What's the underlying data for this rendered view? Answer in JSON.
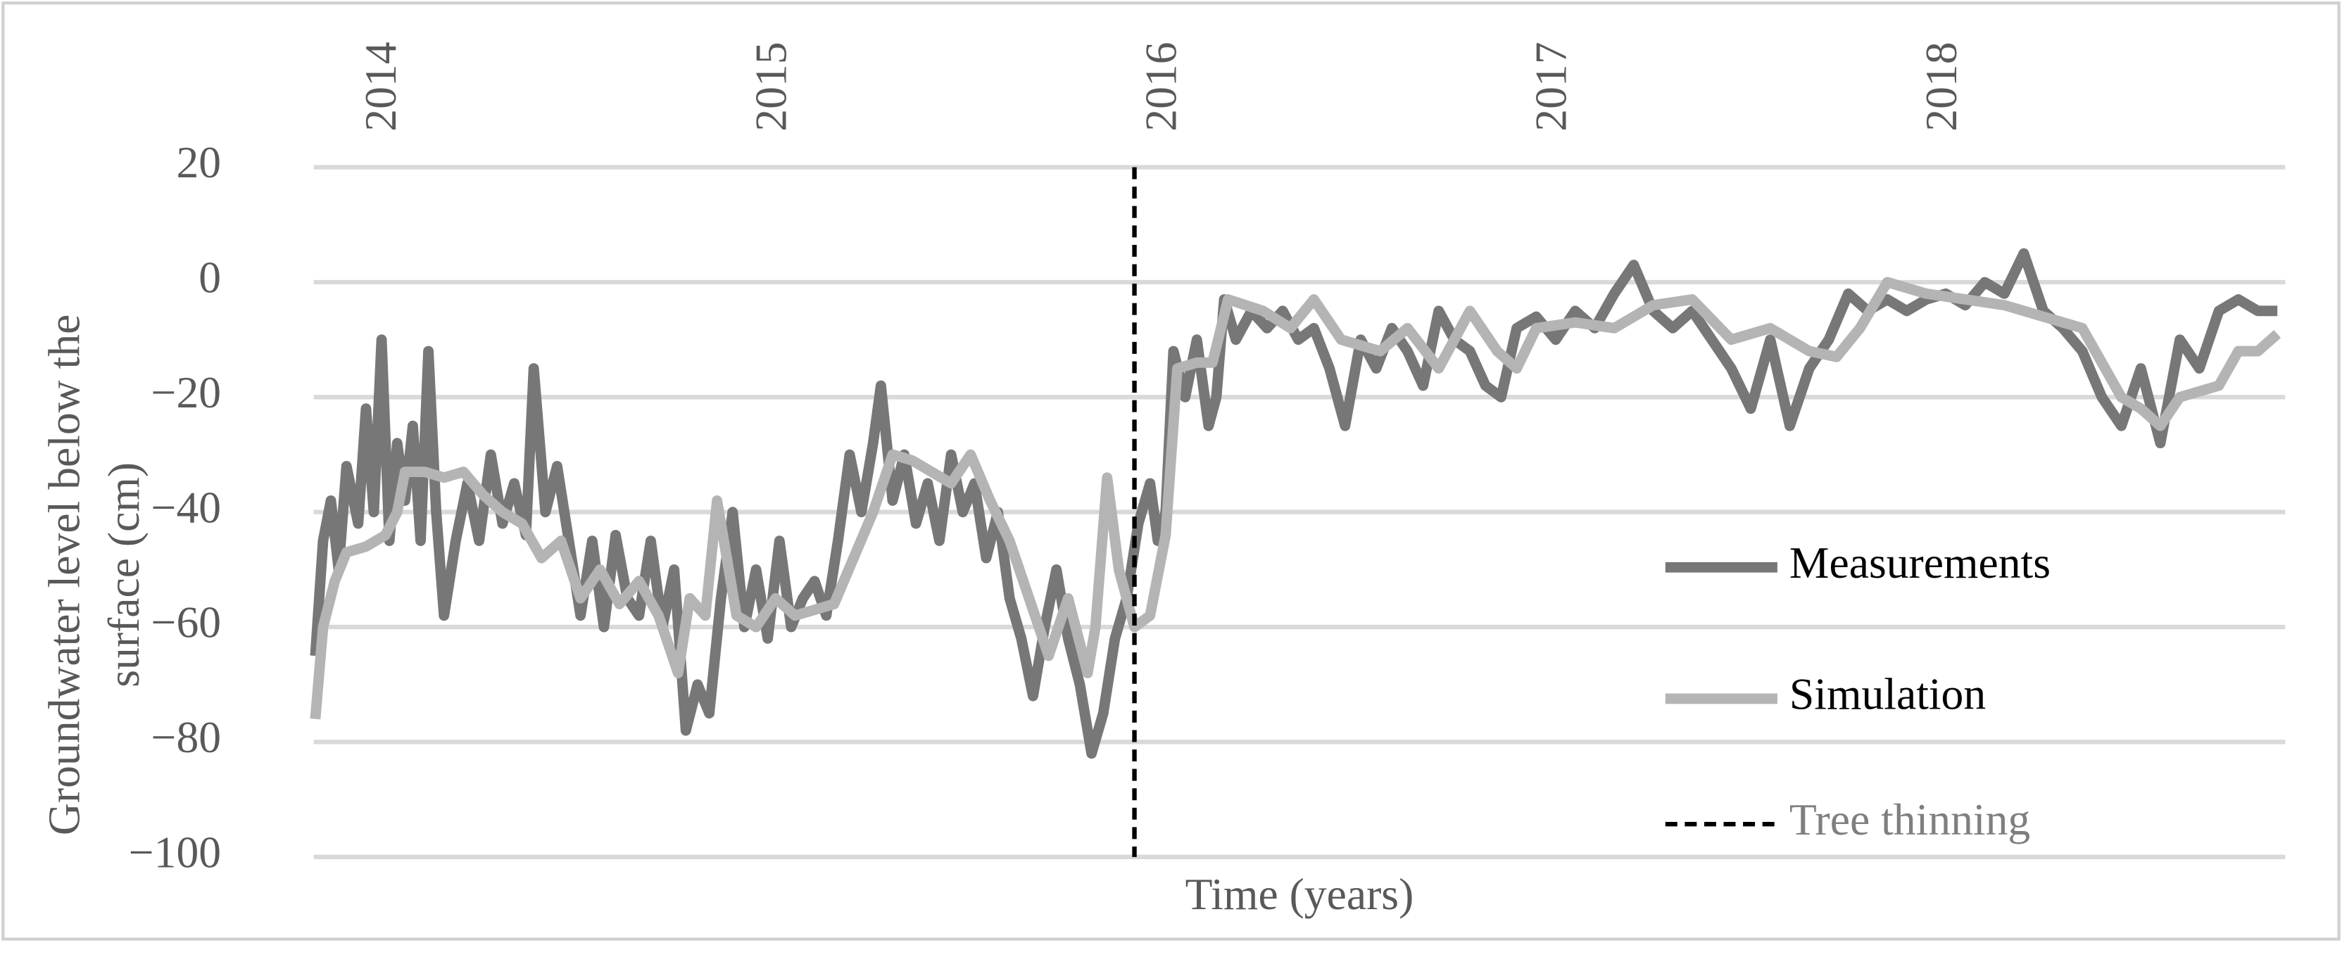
{
  "chart_data": {
    "type": "line",
    "ylabel": [
      "Groundwater level below the",
      "surface (cm)"
    ],
    "xlabel": "Time (years)",
    "xlim": [
      2013.816,
      2018.87
    ],
    "xticks": [
      2014,
      2015,
      2016,
      2017,
      2018
    ],
    "ylim": [
      -100,
      20
    ],
    "yticks": [
      {
        "value": -100,
        "label": "−100"
      },
      {
        "value": -80,
        "label": "−80"
      },
      {
        "value": -60,
        "label": "−60"
      },
      {
        "value": -40,
        "label": "−40"
      },
      {
        "value": -20,
        "label": "−20"
      },
      0,
      20
    ],
    "grid": true,
    "legend": "right",
    "series": [
      {
        "name": "Measurements",
        "color": "#777777",
        "x": [
          2013.82,
          2013.84,
          2013.86,
          2013.88,
          2013.9,
          2013.93,
          2013.95,
          2013.97,
          2013.99,
          2014.01,
          2014.03,
          2014.05,
          2014.07,
          2014.09,
          2014.11,
          2014.13,
          2014.15,
          2014.18,
          2014.21,
          2014.24,
          2014.27,
          2014.3,
          2014.33,
          2014.36,
          2014.38,
          2014.41,
          2014.44,
          2014.47,
          2014.5,
          2014.53,
          2014.56,
          2014.59,
          2014.62,
          2014.65,
          2014.68,
          2014.71,
          2014.74,
          2014.77,
          2014.8,
          2014.83,
          2014.86,
          2014.89,
          2014.92,
          2014.95,
          2014.98,
          2015.01,
          2015.04,
          2015.07,
          2015.1,
          2015.13,
          2015.16,
          2015.19,
          2015.22,
          2015.25,
          2015.27,
          2015.3,
          2015.33,
          2015.36,
          2015.39,
          2015.42,
          2015.45,
          2015.48,
          2015.51,
          2015.54,
          2015.57,
          2015.6,
          2015.63,
          2015.66,
          2015.69,
          2015.72,
          2015.75,
          2015.78,
          2015.81,
          2015.84,
          2015.87,
          2015.9,
          2015.93,
          2015.96,
          2015.98,
          2016.0,
          2016.02,
          2016.05,
          2016.08,
          2016.11,
          2016.13,
          2016.15,
          2016.18,
          2016.22,
          2016.26,
          2016.3,
          2016.34,
          2016.38,
          2016.42,
          2016.46,
          2016.5,
          2016.54,
          2016.58,
          2016.62,
          2016.66,
          2016.7,
          2016.74,
          2016.78,
          2016.82,
          2016.86,
          2016.9,
          2016.95,
          2017.0,
          2017.05,
          2017.1,
          2017.15,
          2017.2,
          2017.25,
          2017.3,
          2017.35,
          2017.4,
          2017.45,
          2017.5,
          2017.55,
          2017.6,
          2017.65,
          2017.7,
          2017.75,
          2017.8,
          2017.85,
          2017.9,
          2017.95,
          2018.0,
          2018.05,
          2018.1,
          2018.15,
          2018.2,
          2018.25,
          2018.3,
          2018.35,
          2018.4,
          2018.45,
          2018.5,
          2018.55,
          2018.6,
          2018.65,
          2018.7,
          2018.75,
          2018.8,
          2018.85
        ],
        "values": [
          -65,
          -45,
          -38,
          -50,
          -32,
          -42,
          -22,
          -40,
          -10,
          -45,
          -28,
          -38,
          -25,
          -45,
          -12,
          -40,
          -58,
          -45,
          -35,
          -45,
          -30,
          -42,
          -35,
          -44,
          -15,
          -40,
          -32,
          -45,
          -58,
          -45,
          -60,
          -44,
          -55,
          -58,
          -45,
          -60,
          -50,
          -78,
          -70,
          -75,
          -55,
          -40,
          -60,
          -50,
          -62,
          -45,
          -60,
          -55,
          -52,
          -58,
          -45,
          -30,
          -40,
          -28,
          -18,
          -38,
          -30,
          -42,
          -35,
          -45,
          -30,
          -40,
          -35,
          -48,
          -40,
          -55,
          -62,
          -72,
          -60,
          -50,
          -62,
          -70,
          -82,
          -75,
          -62,
          -55,
          -42,
          -35,
          -45,
          -40,
          -12,
          -20,
          -10,
          -25,
          -20,
          -3,
          -10,
          -5,
          -8,
          -5,
          -10,
          -8,
          -15,
          -25,
          -10,
          -15,
          -8,
          -12,
          -18,
          -5,
          -10,
          -12,
          -18,
          -20,
          -8,
          -6,
          -10,
          -5,
          -8,
          -2,
          3,
          -5,
          -8,
          -5,
          -10,
          -15,
          -22,
          -10,
          -25,
          -15,
          -10,
          -2,
          -5,
          -3,
          -5,
          -3,
          -2,
          -4,
          0,
          -2,
          5,
          -5,
          -8,
          -12,
          -20,
          -25,
          -15,
          -28,
          -10,
          -15,
          -5,
          -3,
          -5,
          -5
        ]
      },
      {
        "name": "Simulation",
        "color": "#b4b4b4",
        "x": [
          2013.82,
          2013.84,
          2013.87,
          2013.9,
          2013.95,
          2014.0,
          2014.03,
          2014.05,
          2014.1,
          2014.15,
          2014.2,
          2014.25,
          2014.3,
          2014.35,
          2014.4,
          2014.45,
          2014.5,
          2014.55,
          2014.6,
          2014.65,
          2014.7,
          2014.75,
          2014.78,
          2014.82,
          2014.85,
          2014.9,
          2014.95,
          2015.0,
          2015.05,
          2015.1,
          2015.15,
          2015.2,
          2015.25,
          2015.3,
          2015.35,
          2015.4,
          2015.45,
          2015.5,
          2015.55,
          2015.6,
          2015.65,
          2015.7,
          2015.75,
          2015.8,
          2015.82,
          2015.85,
          2015.88,
          2015.92,
          2015.96,
          2016.0,
          2016.03,
          2016.08,
          2016.12,
          2016.16,
          2016.25,
          2016.32,
          2016.38,
          2016.45,
          2016.55,
          2016.62,
          2016.7,
          2016.78,
          2016.85,
          2016.9,
          2016.95,
          2017.05,
          2017.15,
          2017.25,
          2017.35,
          2017.45,
          2017.55,
          2017.65,
          2017.72,
          2017.78,
          2017.85,
          2017.95,
          2018.05,
          2018.15,
          2018.25,
          2018.35,
          2018.45,
          2018.5,
          2018.55,
          2018.6,
          2018.7,
          2018.75,
          2018.8,
          2018.85
        ],
        "values": [
          -76,
          -60,
          -52,
          -47,
          -46,
          -44,
          -40,
          -33,
          -33,
          -34,
          -33,
          -37,
          -40,
          -42,
          -48,
          -45,
          -55,
          -50,
          -56,
          -52,
          -58,
          -68,
          -55,
          -58,
          -38,
          -58,
          -60,
          -55,
          -58,
          -57,
          -56,
          -48,
          -40,
          -30,
          -31,
          -33,
          -35,
          -30,
          -38,
          -45,
          -55,
          -65,
          -55,
          -68,
          -60,
          -34,
          -50,
          -60,
          -58,
          -44,
          -15,
          -14,
          -14,
          -3,
          -5,
          -8,
          -3,
          -10,
          -12,
          -8,
          -15,
          -5,
          -12,
          -15,
          -8,
          -7,
          -8,
          -4,
          -3,
          -10,
          -8,
          -12,
          -13,
          -8,
          0,
          -2,
          -3,
          -4,
          -6,
          -8,
          -20,
          -22,
          -25,
          -20,
          -18,
          -12,
          -12,
          -9
        ]
      },
      {
        "name": "Tree thinning",
        "color": "#000000",
        "dash": true,
        "x": [
          2015.92,
          2015.92
        ],
        "values": [
          20,
          -100
        ]
      }
    ]
  }
}
